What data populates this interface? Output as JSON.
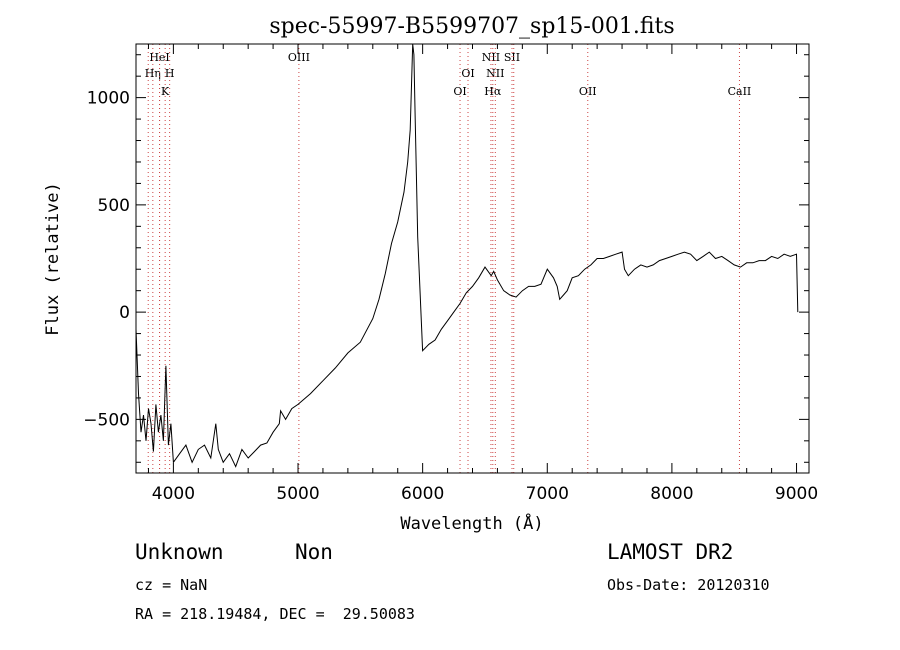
{
  "chart_data": {
    "type": "line",
    "title": "spec-55997-B5599707_sp15-001.fits",
    "xlabel": "Wavelength (Å)",
    "ylabel": "Flux (relative)",
    "xlim": [
      3700,
      9100
    ],
    "ylim": [
      -750,
      1250
    ],
    "xticks": [
      4000,
      5000,
      6000,
      7000,
      8000,
      9000
    ],
    "yticks": [
      -500,
      0,
      500,
      1000
    ],
    "grid": false,
    "series": [
      {
        "x": [
          3700,
          3720,
          3740,
          3760,
          3780,
          3800,
          3820,
          3840,
          3860,
          3880,
          3900,
          3920,
          3940,
          3960,
          3980,
          4000,
          4050,
          4100,
          4150,
          4200,
          4250,
          4300,
          4340,
          4360,
          4400,
          4450,
          4500,
          4550,
          4600,
          4650,
          4700,
          4750,
          4800,
          4850,
          4860,
          4900,
          4950,
          5000,
          5100,
          5200,
          5300,
          5400,
          5500,
          5600,
          5650,
          5700,
          5750,
          5800,
          5850,
          5880,
          5900,
          5920,
          5930,
          5940,
          5960,
          6000,
          6050,
          6100,
          6150,
          6200,
          6250,
          6300,
          6350,
          6400,
          6450,
          6500,
          6550,
          6570,
          6600,
          6650,
          6700,
          6750,
          6800,
          6850,
          6900,
          6950,
          7000,
          7050,
          7080,
          7100,
          7130,
          7160,
          7200,
          7250,
          7300,
          7350,
          7400,
          7450,
          7500,
          7550,
          7600,
          7620,
          7650,
          7700,
          7750,
          7800,
          7850,
          7900,
          7950,
          8000,
          8050,
          8100,
          8150,
          8200,
          8250,
          8300,
          8350,
          8400,
          8450,
          8500,
          8550,
          8600,
          8650,
          8700,
          8750,
          8800,
          8850,
          8900,
          8950,
          9000,
          9010
        ],
        "y": [
          -80,
          -380,
          -560,
          -480,
          -600,
          -450,
          -520,
          -650,
          -430,
          -560,
          -480,
          -600,
          -250,
          -620,
          -520,
          -700,
          -660,
          -620,
          -700,
          -640,
          -620,
          -680,
          -520,
          -640,
          -700,
          -660,
          -720,
          -640,
          -680,
          -650,
          -620,
          -610,
          -560,
          -520,
          -460,
          -500,
          -450,
          -430,
          -380,
          -320,
          -260,
          -190,
          -140,
          -30,
          60,
          180,
          320,
          420,
          560,
          700,
          850,
          1250,
          1200,
          900,
          350,
          -180,
          -150,
          -130,
          -80,
          -40,
          0,
          40,
          90,
          120,
          160,
          210,
          170,
          190,
          150,
          100,
          80,
          70,
          100,
          120,
          120,
          130,
          200,
          160,
          120,
          60,
          80,
          100,
          160,
          170,
          200,
          220,
          250,
          250,
          260,
          270,
          280,
          200,
          170,
          200,
          220,
          210,
          220,
          240,
          250,
          260,
          270,
          280,
          270,
          240,
          260,
          280,
          250,
          260,
          240,
          220,
          210,
          230,
          230,
          240,
          240,
          260,
          250,
          270,
          260,
          270,
          0
        ]
      }
    ],
    "lines": [
      {
        "name": "HeI",
        "x": 3889,
        "row": 1
      },
      {
        "name": "Hη",
        "x": 3835,
        "row": 2
      },
      {
        "name": "H",
        "x": 3970,
        "row": 2
      },
      {
        "name": "K",
        "x": 3934,
        "row": 3
      },
      {
        "name": "OIII",
        "x": 5007,
        "row": 1
      },
      {
        "name": "OI",
        "x": 6300,
        "row": 3
      },
      {
        "name": "OI",
        "x": 6364,
        "row": 2
      },
      {
        "name": "NII",
        "x": 6548,
        "row": 1
      },
      {
        "name": "NII",
        "x": 6583,
        "row": 2
      },
      {
        "name": "Hα",
        "x": 6563,
        "row": 3
      },
      {
        "name": "SII",
        "x": 6717,
        "row": 1
      },
      {
        "name": "OII",
        "x": 7325,
        "row": 3
      },
      {
        "name": "CaII",
        "x": 8542,
        "row": 3
      }
    ],
    "extra_line_x": [
      3798,
      3889,
      6731
    ]
  },
  "footer": {
    "object_type": "Unknown",
    "subclass": "Non",
    "cz": "cz = NaN",
    "coords": "RA = 218.19484, DEC =  29.50083",
    "survey": "LAMOST DR2",
    "obs_date": "Obs-Date: 20120310"
  },
  "colors": {
    "spectrum": "#000000",
    "line_marker": "#cc4444"
  }
}
